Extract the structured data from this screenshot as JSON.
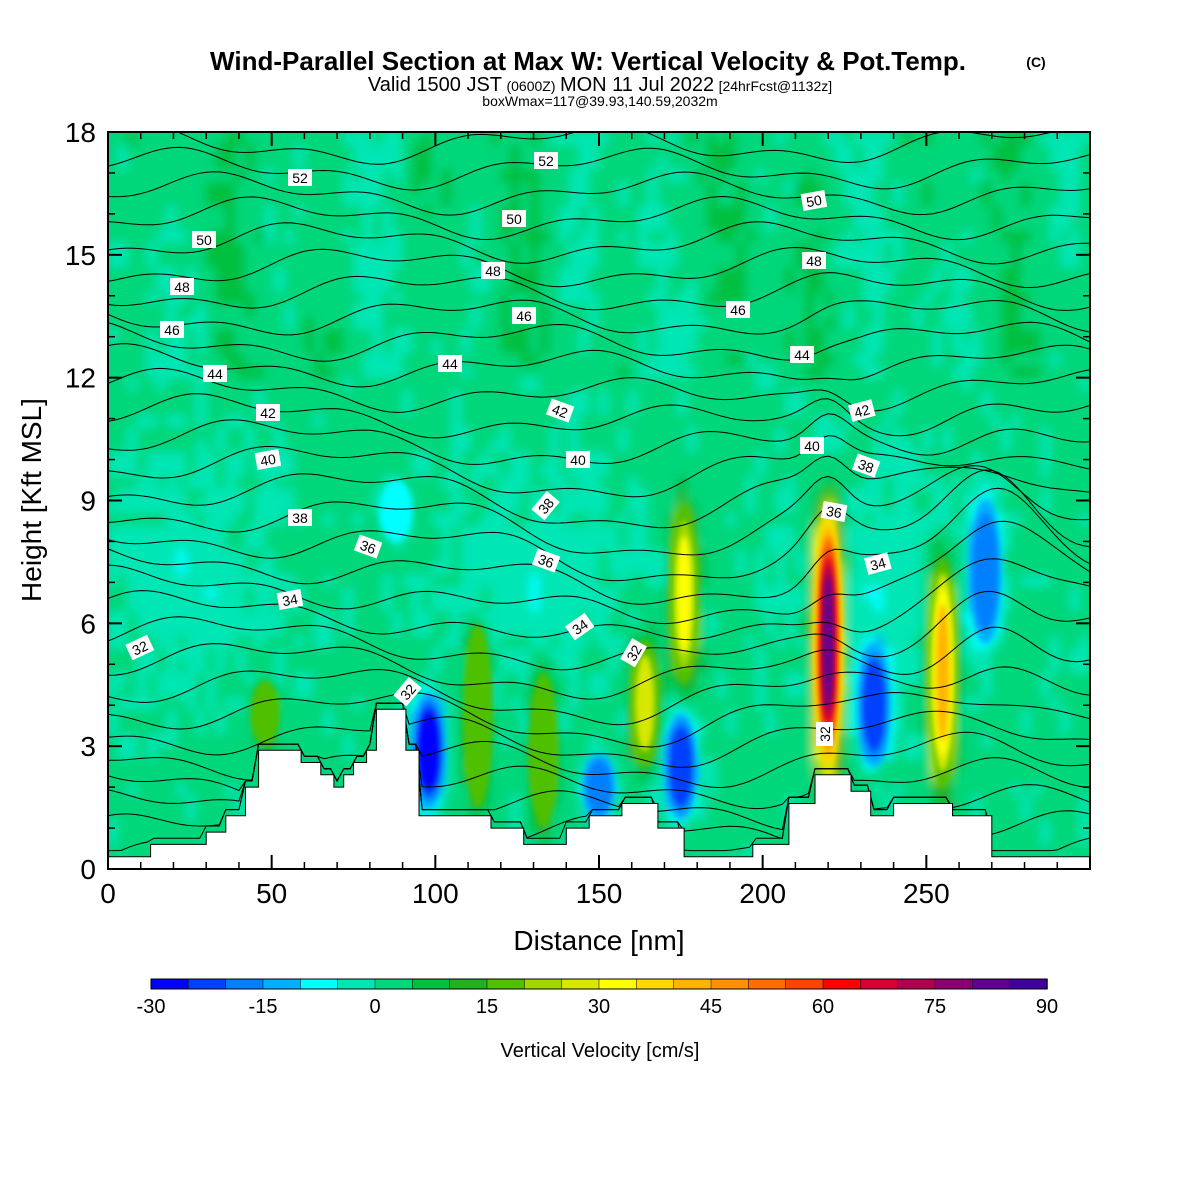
{
  "title": {
    "main": "Wind-Parallel Section at Max W: Vertical Velocity & Pot.Temp.",
    "copyright": "(C)",
    "valid_prefix": "Valid 1500 JST",
    "valid_utc": "(0600Z)",
    "valid_date": "MON 11 Jul 2022",
    "forecast": "[24hrFcst@1132z]",
    "boxwmax": "boxWmax=117@39.93,140.59,2032m"
  },
  "chart_data": {
    "type": "heatmap",
    "xlabel": "Distance [nm]",
    "ylabel": "Height [Kft MSL]",
    "xlim": [
      0,
      300
    ],
    "ylim": [
      0,
      18
    ],
    "x_ticks": [
      "0",
      "50",
      "100",
      "150",
      "200",
      "250"
    ],
    "y_ticks": [
      "0",
      "3",
      "6",
      "9",
      "12",
      "15",
      "18"
    ],
    "x_tick_values": [
      0,
      50,
      100,
      150,
      200,
      250
    ],
    "y_tick_values": [
      0,
      3,
      6,
      9,
      12,
      15,
      18
    ],
    "colorbar": {
      "label": "Vertical Velocity [cm/s]",
      "ticks": [
        "-30",
        "-15",
        "0",
        "15",
        "30",
        "45",
        "60",
        "75",
        "90"
      ],
      "min": -30,
      "max": 90,
      "step": 5,
      "colors": [
        "#0000ff",
        "#0040ff",
        "#0080ff",
        "#00b0ff",
        "#00ffff",
        "#00e6b4",
        "#00d77a",
        "#00c040",
        "#20b020",
        "#50c000",
        "#a0d800",
        "#d8e800",
        "#ffff00",
        "#ffd800",
        "#ffb400",
        "#ff9000",
        "#ff6c00",
        "#ff4400",
        "#ff0000",
        "#d80030",
        "#b00050",
        "#8a0070",
        "#600090",
        "#4000a0"
      ]
    },
    "theta_labels": [
      "52",
      "52",
      "50",
      "50",
      "50",
      "48",
      "48",
      "48",
      "46",
      "46",
      "46",
      "44",
      "44",
      "44",
      "42",
      "42",
      "42",
      "40",
      "40",
      "40",
      "38",
      "38",
      "38",
      "36",
      "36",
      "36",
      "34",
      "34",
      "34",
      "32",
      "32",
      "32",
      "32"
    ],
    "updrafts": [
      {
        "x": 220,
        "z_base": 2.3,
        "z_top": 8.8,
        "w_max": 80
      },
      {
        "x": 255,
        "z_base": 2.0,
        "z_top": 7.6,
        "w_max": 40
      },
      {
        "x": 176,
        "z_base": 4.5,
        "z_top": 8.9,
        "w_max": 32
      },
      {
        "x": 164,
        "z_base": 2.5,
        "z_top": 5.6,
        "w_max": 28
      },
      {
        "x": 113,
        "z_base": 1.5,
        "z_top": 6.0,
        "w_max": 18
      },
      {
        "x": 133,
        "z_base": 1.0,
        "z_top": 4.8,
        "w_max": 18
      },
      {
        "x": 48,
        "z_base": 3.0,
        "z_top": 4.6,
        "w_max": 15
      }
    ],
    "downdrafts": [
      {
        "x": 98,
        "z_base": 1.5,
        "z_top": 4.3,
        "w_min": -30
      },
      {
        "x": 175,
        "z_base": 1.2,
        "z_top": 3.8,
        "w_min": -25
      },
      {
        "x": 234,
        "z_base": 2.5,
        "z_top": 5.5,
        "w_min": -25
      },
      {
        "x": 150,
        "z_base": 1.2,
        "z_top": 2.8,
        "w_min": -20
      },
      {
        "x": 268,
        "z_base": 5.5,
        "z_top": 9.0,
        "w_min": -20
      },
      {
        "x": 88,
        "z_base": 8.0,
        "z_top": 9.5,
        "w_min": -10
      }
    ],
    "terrain": [
      [
        0,
        0.3
      ],
      [
        13,
        0.3
      ],
      [
        13,
        0.6
      ],
      [
        30,
        0.6
      ],
      [
        30,
        0.9
      ],
      [
        36,
        0.9
      ],
      [
        36,
        1.3
      ],
      [
        42,
        1.3
      ],
      [
        42,
        2.0
      ],
      [
        46,
        2.0
      ],
      [
        46,
        2.9
      ],
      [
        59,
        2.9
      ],
      [
        59,
        2.6
      ],
      [
        65,
        2.6
      ],
      [
        65,
        2.3
      ],
      [
        69,
        2.3
      ],
      [
        69,
        2.0
      ],
      [
        72,
        2.0
      ],
      [
        72,
        2.3
      ],
      [
        75,
        2.3
      ],
      [
        75,
        2.6
      ],
      [
        79,
        2.6
      ],
      [
        79,
        2.9
      ],
      [
        82,
        2.9
      ],
      [
        82,
        3.9
      ],
      [
        91,
        3.9
      ],
      [
        91,
        2.9
      ],
      [
        95,
        2.9
      ],
      [
        95,
        1.3
      ],
      [
        117,
        1.3
      ],
      [
        117,
        1.0
      ],
      [
        127,
        1.0
      ],
      [
        127,
        0.6
      ],
      [
        140,
        0.6
      ],
      [
        140,
        1.0
      ],
      [
        147,
        1.0
      ],
      [
        147,
        1.3
      ],
      [
        157,
        1.3
      ],
      [
        157,
        1.6
      ],
      [
        168,
        1.6
      ],
      [
        168,
        1.0
      ],
      [
        176,
        1.0
      ],
      [
        176,
        0.3
      ],
      [
        197,
        0.3
      ],
      [
        197,
        0.6
      ],
      [
        208,
        0.6
      ],
      [
        208,
        1.6
      ],
      [
        216,
        1.6
      ],
      [
        216,
        2.3
      ],
      [
        227,
        2.3
      ],
      [
        227,
        1.9
      ],
      [
        233,
        1.9
      ],
      [
        233,
        1.3
      ],
      [
        240,
        1.3
      ],
      [
        240,
        1.6
      ],
      [
        258,
        1.6
      ],
      [
        258,
        1.3
      ],
      [
        270,
        1.3
      ],
      [
        270,
        0.3
      ],
      [
        300,
        0.3
      ]
    ]
  }
}
